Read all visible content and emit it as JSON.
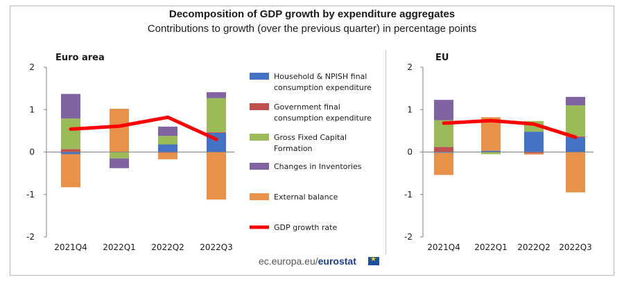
{
  "header": {
    "title": "Decomposition of GDP growth by expenditure aggregates",
    "subtitle": "Contributions to growth (over the previous quarter) in percentage points"
  },
  "source": {
    "prefix": "ec.europa.eu/",
    "brand": "eurostat"
  },
  "colors": {
    "household": "#4472c4",
    "government": "#c0504d",
    "gfcf": "#9bbb59",
    "inventories": "#8064a2",
    "external": "#e8914a",
    "gdp": "#ff0000",
    "axis": "#7f7f7f"
  },
  "chart_data": [
    {
      "type": "bar",
      "subtype": "stacked-with-line",
      "title": "Euro area",
      "categories": [
        "2021Q4",
        "2022Q1",
        "2022Q2",
        "2022Q3"
      ],
      "ylim": [
        -2,
        2
      ],
      "yticks": [
        "2",
        "1",
        "0",
        "-1",
        "-2"
      ],
      "series": [
        {
          "name": "Household & NPISH final consumption expenditure",
          "key": "household",
          "values": [
            -0.05,
            0.0,
            0.18,
            0.45
          ]
        },
        {
          "name": "Government final consumption expenditure",
          "key": "government",
          "values": [
            0.07,
            0.0,
            -0.02,
            0.02
          ]
        },
        {
          "name": "Gross Fixed Capital Formation",
          "key": "gfcf",
          "values": [
            0.72,
            -0.15,
            0.2,
            0.8
          ]
        },
        {
          "name": "Changes in Inventories",
          "key": "inventories",
          "values": [
            0.58,
            -0.23,
            0.22,
            0.14
          ]
        },
        {
          "name": "External balance",
          "key": "external",
          "values": [
            -0.78,
            1.02,
            -0.15,
            -1.12
          ]
        }
      ],
      "line": {
        "name": "GDP growth rate",
        "values": [
          0.54,
          0.61,
          0.82,
          0.3
        ]
      }
    },
    {
      "type": "bar",
      "subtype": "stacked-with-line",
      "title": "EU",
      "categories": [
        "2021Q4",
        "2022Q1",
        "2022Q2",
        "2022Q3"
      ],
      "ylim": [
        -2,
        2
      ],
      "yticks": [
        "2",
        "1",
        "0",
        "-1",
        "-2"
      ],
      "series": [
        {
          "name": "Household & NPISH final consumption expenditure",
          "key": "household",
          "values": [
            -0.02,
            0.03,
            0.48,
            0.35
          ]
        },
        {
          "name": "Government final consumption expenditure",
          "key": "government",
          "values": [
            0.12,
            0.0,
            -0.03,
            0.02
          ]
        },
        {
          "name": "Gross Fixed Capital Formation",
          "key": "gfcf",
          "values": [
            0.63,
            -0.05,
            0.25,
            0.73
          ]
        },
        {
          "name": "Changes in Inventories",
          "key": "inventories",
          "values": [
            0.48,
            0.0,
            0.0,
            0.2
          ]
        },
        {
          "name": "External balance",
          "key": "external",
          "values": [
            -0.52,
            0.79,
            -0.03,
            -0.95
          ]
        }
      ],
      "line": {
        "name": "GDP growth rate",
        "values": [
          0.68,
          0.74,
          0.66,
          0.35
        ]
      }
    }
  ],
  "legend": {
    "items": [
      {
        "key": "household",
        "lines": [
          "Household & NPISH final",
          "consumption expenditure"
        ]
      },
      {
        "key": "government",
        "lines": [
          "Government final",
          "consumption expenditure"
        ]
      },
      {
        "key": "gfcf",
        "lines": [
          "Gross Fixed Capital",
          "Formation"
        ]
      },
      {
        "key": "inventories",
        "lines": [
          "Changes in Inventories"
        ]
      },
      {
        "key": "external",
        "lines": [
          "External balance"
        ]
      },
      {
        "key": "gdp",
        "lines": [
          "GDP growth rate"
        ],
        "kind": "line"
      }
    ]
  }
}
